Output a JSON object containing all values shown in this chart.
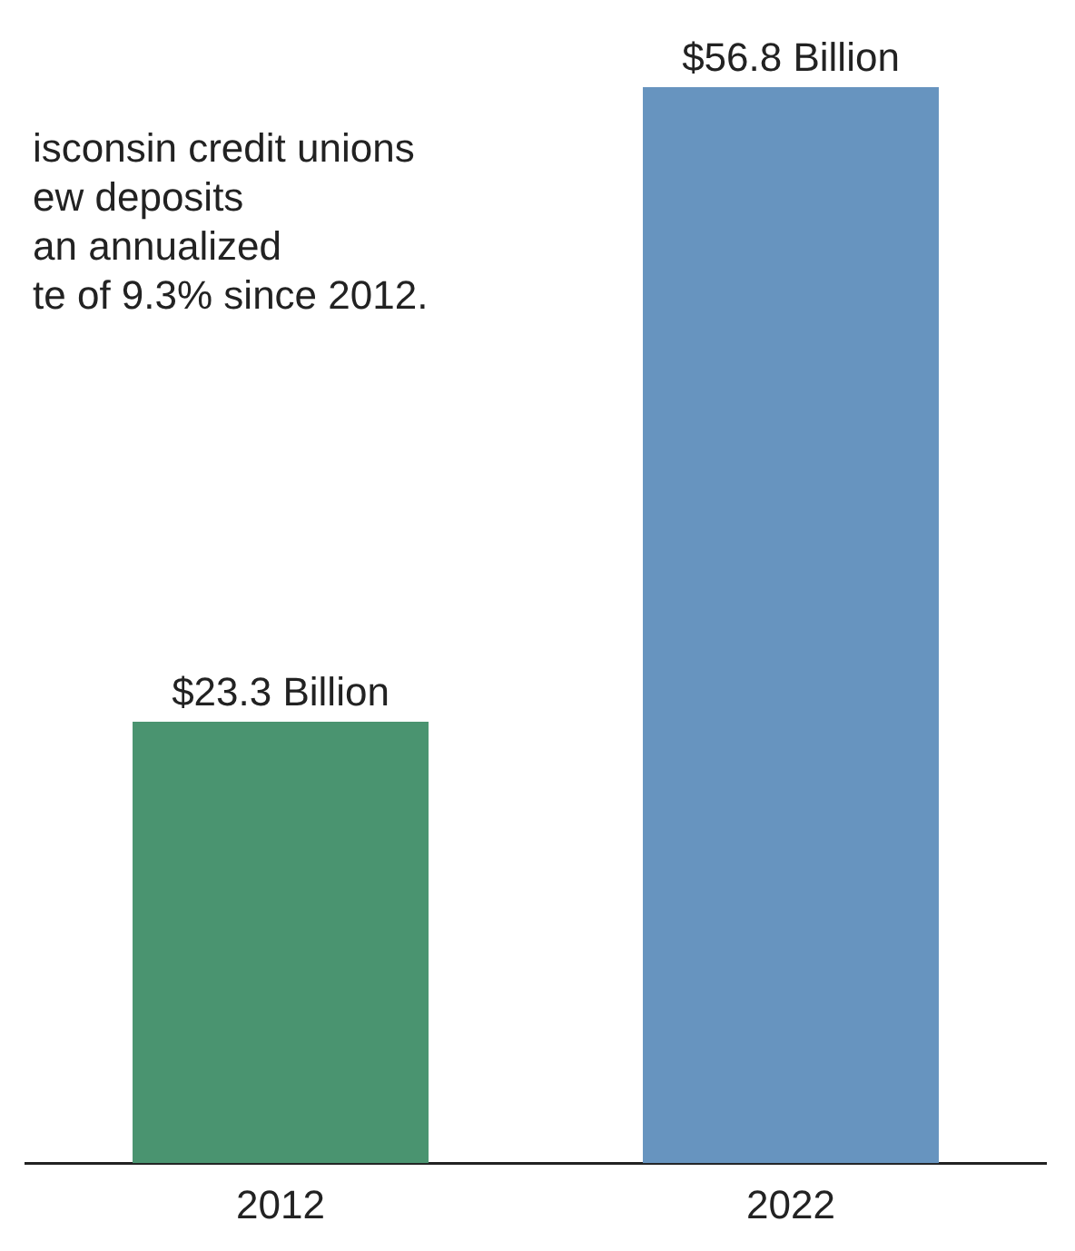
{
  "chart_data": {
    "type": "bar",
    "categories": [
      "2012",
      "2022"
    ],
    "values": [
      23.3,
      56.8
    ],
    "colors": [
      "#4a9470",
      "#6794bf"
    ],
    "value_labels": [
      "$23.3 Billion",
      "$56.8 Billion"
    ],
    "annotations": [
      "isconsin credit unions",
      "ew deposits",
      "an annualized",
      "te of 9.3% since 2012."
    ],
    "grid": false,
    "legend": false
  }
}
